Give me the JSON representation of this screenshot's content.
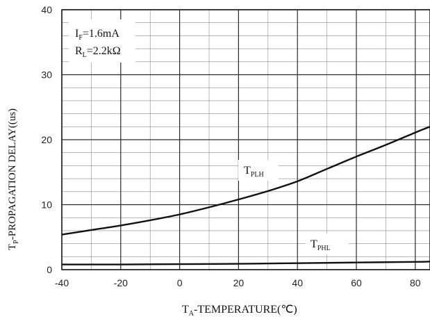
{
  "chart_data": {
    "type": "line",
    "title": "",
    "xlabel": {
      "main": "T",
      "sub": "A",
      "rest": "-TEMPERATURE(℃)"
    },
    "ylabel": {
      "main": "T",
      "sub": "P",
      "rest": "-PROPAGATION DELAY((us)"
    },
    "xlim": [
      -40,
      85
    ],
    "ylim": [
      0,
      40
    ],
    "x_ticks": [
      -40,
      -20,
      0,
      20,
      40,
      60,
      80
    ],
    "y_ticks": [
      0,
      10,
      20,
      30,
      40
    ],
    "x_minor_step": 10,
    "y_minor_step": 2,
    "grid": true,
    "conditions": [
      {
        "main": "I",
        "sub": "F",
        "rest": "=1.6mA"
      },
      {
        "main": "R",
        "sub": "L",
        "rest": "=2.2kΩ"
      }
    ],
    "series": [
      {
        "name": "T_PLH",
        "label": {
          "main": "T",
          "sub": "PLH"
        },
        "x": [
          -40,
          -30,
          -20,
          -10,
          0,
          10,
          20,
          30,
          40,
          50,
          60,
          70,
          80,
          85
        ],
        "y": [
          5.4,
          6.1,
          6.8,
          7.6,
          8.5,
          9.6,
          10.8,
          12.1,
          13.6,
          15.5,
          17.4,
          19.2,
          21.1,
          22.0
        ]
      },
      {
        "name": "T_PHL",
        "label": {
          "main": "T",
          "sub": "PHL"
        },
        "x": [
          -40,
          -20,
          0,
          20,
          40,
          60,
          80,
          85
        ],
        "y": [
          0.8,
          0.8,
          0.85,
          0.9,
          1.0,
          1.1,
          1.2,
          1.25
        ]
      }
    ],
    "colors": {
      "line": "#111111",
      "grid": "#2a2a2a",
      "frame": "#111111"
    }
  }
}
